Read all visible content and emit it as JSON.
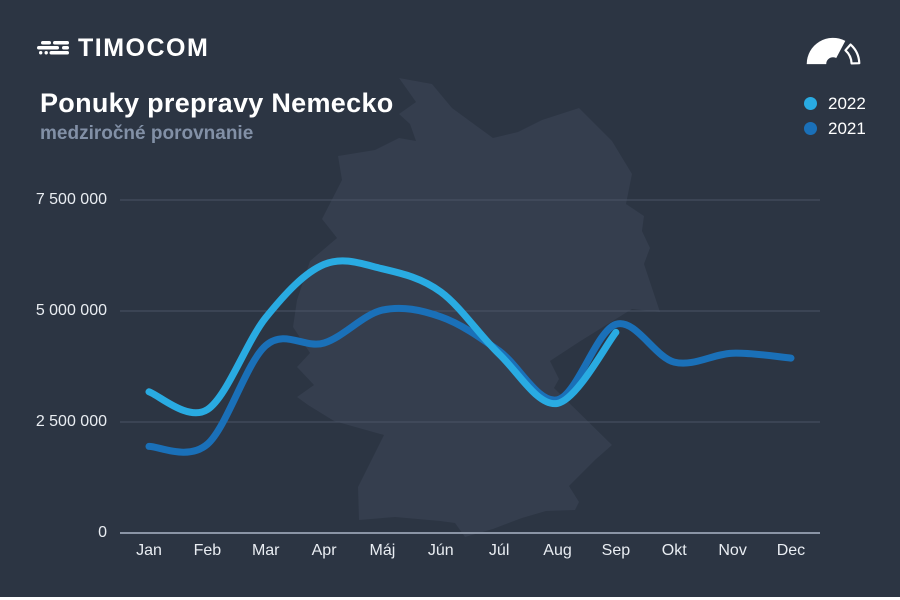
{
  "header": {
    "logo_text": "TIMOCOM"
  },
  "title": "Ponuky prepravy Nemecko",
  "subtitle": "medziročné porovnanie",
  "legend": {
    "position": "top-right",
    "items": [
      {
        "label": "2022",
        "color": "#29abe2"
      },
      {
        "label": "2021",
        "color": "#1a70b8"
      }
    ]
  },
  "icons": {
    "logo_icon": "truck-speed-lines-icon",
    "gauge_icon": "speedometer-icon",
    "background_shape": "germany-map-silhouette"
  },
  "colors": {
    "background": "#2c3543",
    "map_silhouette": "#353e4e",
    "gridline": "#4a5466",
    "zero_axis_line": "#8b95a6",
    "text_primary": "#ffffff",
    "text_muted": "#8290a6",
    "series_2022": "#29abe2",
    "series_2021": "#1a70b8"
  },
  "chart_data": {
    "type": "line",
    "title": "Ponuky prepravy Nemecko",
    "subtitle": "medziročné porovnanie",
    "categories": [
      "Jan",
      "Feb",
      "Mar",
      "Apr",
      "Máj",
      "Jún",
      "Júl",
      "Aug",
      "Sep",
      "Okt",
      "Nov",
      "Dec"
    ],
    "series": [
      {
        "name": "2022",
        "color": "#29abe2",
        "values": [
          3180000,
          2780000,
          4850000,
          6050000,
          5950000,
          5430000,
          4030000,
          2920000,
          4520000,
          null,
          null,
          null
        ]
      },
      {
        "name": "2021",
        "color": "#1a70b8",
        "values": [
          1950000,
          2000000,
          4220000,
          4280000,
          5020000,
          4870000,
          4100000,
          3000000,
          4700000,
          3850000,
          4050000,
          3940000
        ]
      }
    ],
    "ylim": [
      0,
      7500000
    ],
    "yticks": [
      {
        "value": 7500000,
        "label": "7 500 000"
      },
      {
        "value": 5000000,
        "label": "5 000 000"
      },
      {
        "value": 2500000,
        "label": "2 500 000"
      },
      {
        "value": 0,
        "label": "0"
      }
    ],
    "grid": "horizontal-only",
    "legend_position": "top-right",
    "smooth": true,
    "note_2022_series_ends_at": "Sep"
  }
}
